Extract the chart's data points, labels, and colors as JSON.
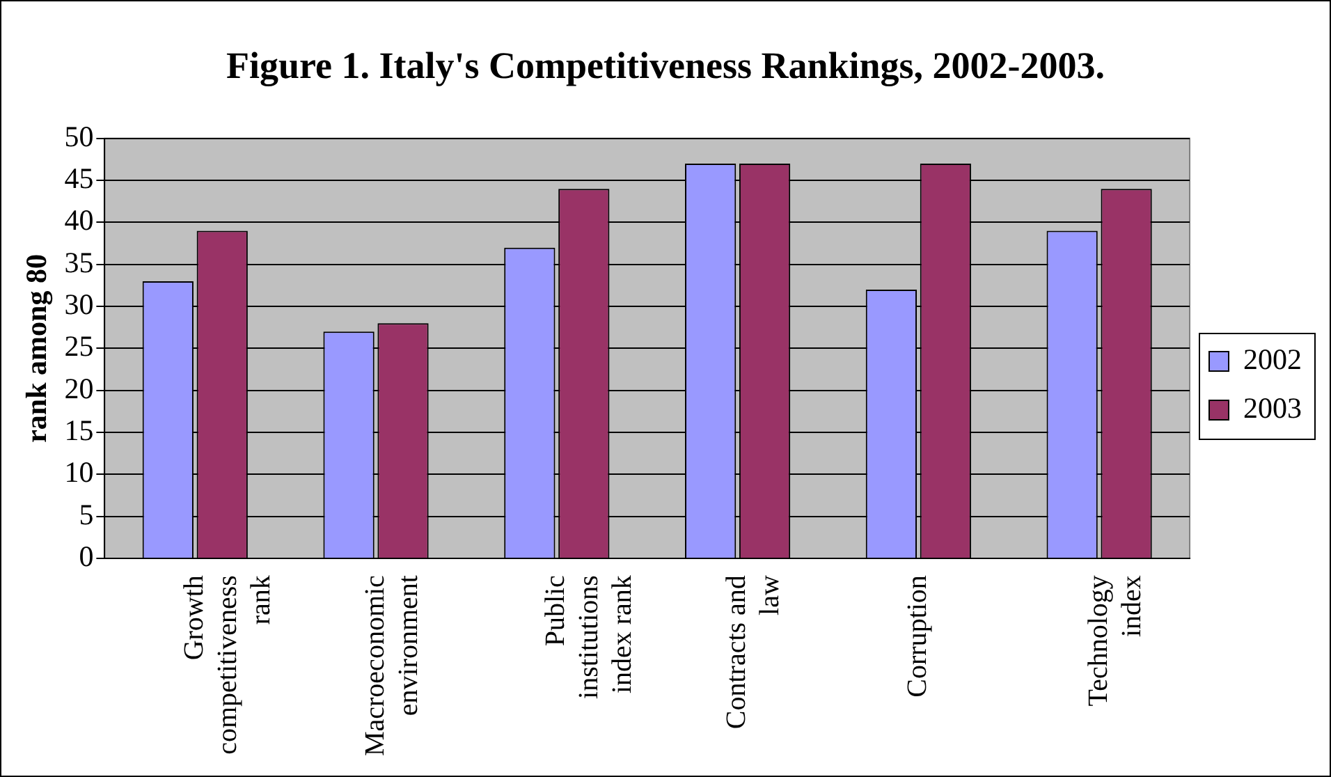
{
  "chart_data": {
    "type": "bar",
    "title": "Figure 1. Italy's Competitiveness Rankings, 2002-2003.",
    "ylabel": "rank among 80",
    "categories": [
      "Growth competitiveness rank",
      "Macroeconomic environment",
      "Public institutions index rank",
      "Contracts and law",
      "Corruption",
      "Technology index"
    ],
    "series": [
      {
        "name": "2002",
        "color": "#9999ff",
        "values": [
          33,
          27,
          37,
          47,
          32,
          39
        ]
      },
      {
        "name": "2003",
        "color": "#993366",
        "values": [
          39,
          28,
          44,
          47,
          47,
          44
        ]
      }
    ],
    "ylim": [
      0,
      50
    ],
    "yticks": [
      0,
      5,
      10,
      15,
      20,
      25,
      30,
      35,
      40,
      45,
      50
    ],
    "grid": "y",
    "legend": "right"
  }
}
